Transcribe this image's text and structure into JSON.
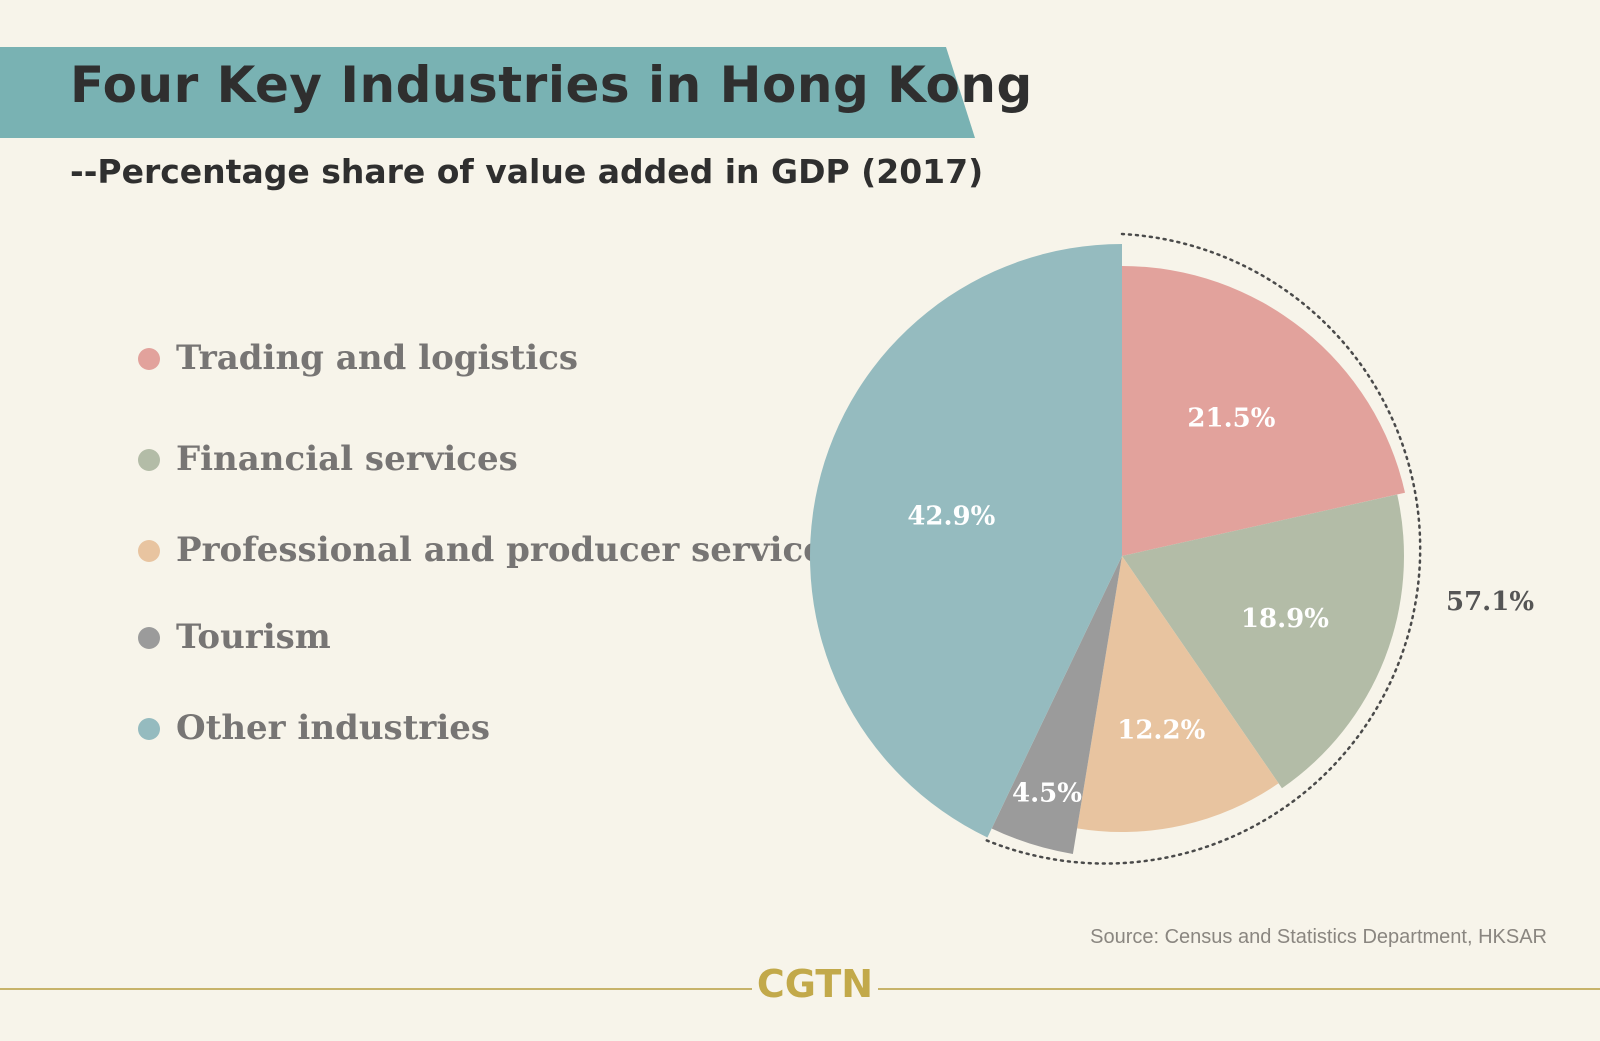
{
  "colors": {
    "background": "#f7f4ea",
    "title_band": "#79b2b3",
    "trading": "#e2a29c",
    "financial": "#b3bca7",
    "professional": "#e8c4a0",
    "tourism": "#9b9b9b",
    "other": "#95bbbf",
    "brand": "#c2a94a"
  },
  "title": "Four Key Industries in Hong Kong",
  "subtitle": "--Percentage share of value added in GDP (2017)",
  "legend": [
    {
      "label": "Trading and logistics",
      "color": "#e2a29c"
    },
    {
      "label": "Financial services",
      "color": "#b3bca7"
    },
    {
      "label": "Professional and producer services",
      "color": "#e8c4a0"
    },
    {
      "label": "Tourism",
      "color": "#9b9b9b"
    },
    {
      "label": "Other industries",
      "color": "#95bbbf"
    }
  ],
  "chart_data": {
    "type": "pie",
    "categories": [
      "Trading and logistics",
      "Financial services",
      "Professional and producer services",
      "Tourism",
      "Other industries"
    ],
    "values": [
      21.5,
      18.9,
      12.2,
      4.5,
      42.9
    ],
    "value_labels": [
      "21.5%",
      "18.9%",
      "12.2%",
      "4.5%",
      "42.9%"
    ],
    "colors": [
      "#e2a29c",
      "#b3bca7",
      "#e8c4a0",
      "#9b9b9b",
      "#95bbbf"
    ],
    "bracket_label": "57.1%",
    "legend_position": "left"
  },
  "source": "Source: Census and Statistics Department, HKSAR",
  "brand": "CGTN"
}
